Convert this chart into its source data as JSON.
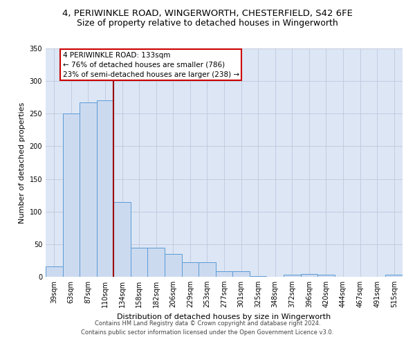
{
  "title_line1": "4, PERIWINKLE ROAD, WINGERWORTH, CHESTERFIELD, S42 6FE",
  "title_line2": "Size of property relative to detached houses in Wingerworth",
  "xlabel": "Distribution of detached houses by size in Wingerworth",
  "ylabel": "Number of detached properties",
  "bar_values": [
    16,
    250,
    267,
    270,
    115,
    45,
    45,
    35,
    22,
    22,
    9,
    9,
    1,
    0,
    3,
    4,
    3,
    0,
    0,
    0,
    3
  ],
  "bar_labels": [
    "39sqm",
    "63sqm",
    "87sqm",
    "110sqm",
    "134sqm",
    "158sqm",
    "182sqm",
    "206sqm",
    "229sqm",
    "253sqm",
    "277sqm",
    "301sqm",
    "325sqm",
    "348sqm",
    "372sqm",
    "396sqm",
    "420sqm",
    "444sqm",
    "467sqm",
    "491sqm",
    "515sqm"
  ],
  "bar_color": "#ccdaf0",
  "bar_edge_color": "#5b9bd5",
  "property_line_x": 3.5,
  "annotation_line1": "4 PERIWINKLE ROAD: 133sqm",
  "annotation_line2": "← 76% of detached houses are smaller (786)",
  "annotation_line3": "23% of semi-detached houses are larger (238) →",
  "annotation_box_color": "#ffffff",
  "annotation_box_edge": "#cc0000",
  "vline_color": "#990000",
  "ylim": [
    0,
    350
  ],
  "yticks": [
    0,
    50,
    100,
    150,
    200,
    250,
    300,
    350
  ],
  "grid_color": "#c0c8dc",
  "background_color": "#dce6f5",
  "footer_line1": "Contains HM Land Registry data © Crown copyright and database right 2024.",
  "footer_line2": "Contains public sector information licensed under the Open Government Licence v3.0.",
  "title1_fontsize": 9.5,
  "title2_fontsize": 9,
  "axis_label_fontsize": 8,
  "tick_fontsize": 7,
  "annotation_fontsize": 7.5,
  "footer_fontsize": 6
}
